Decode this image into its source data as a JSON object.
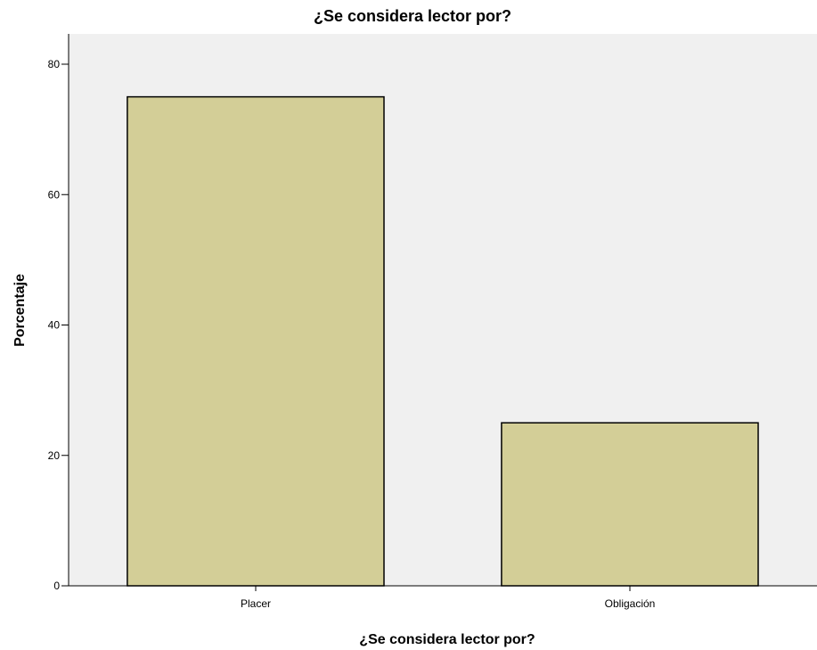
{
  "chart_data": {
    "type": "bar",
    "title": "¿Se considera lector por?",
    "xlabel": "¿Se considera lector por?",
    "ylabel": "Porcentaje",
    "categories": [
      "Placer",
      "Obligación"
    ],
    "values": [
      75,
      25
    ],
    "ylim": [
      0,
      80
    ],
    "yticks": [
      "0",
      "20",
      "40",
      "60",
      "80"
    ],
    "grid": false,
    "colors": {
      "bar_fill": "#d3ce97",
      "bar_stroke": "#000000",
      "plot_background": "#f0f0f0"
    }
  }
}
